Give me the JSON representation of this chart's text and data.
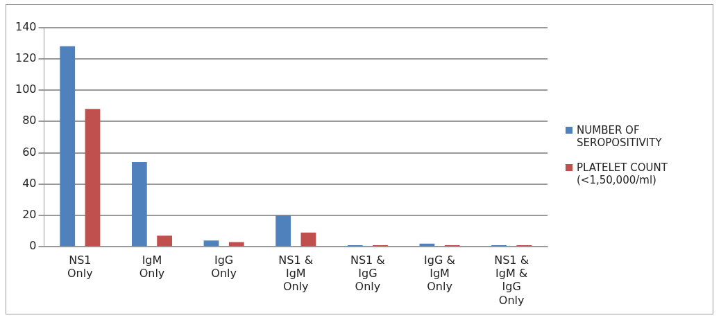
{
  "chart_data": {
    "type": "bar",
    "categories": [
      "NS1 Only",
      "IgM Only",
      "IgG Only",
      "NS1 & IgM Only",
      "NS1 & IgG Only",
      "IgG & IgM Only",
      "NS1 & IgM & IgG Only"
    ],
    "series": [
      {
        "name": "NUMBER OF SEROPOSITIVITY",
        "color": "#4f81bd",
        "values": [
          128,
          54,
          4,
          20,
          1,
          2,
          1
        ]
      },
      {
        "name": "PLATELET COUNT (<1,50,000/ml)",
        "color": "#c0504d",
        "values": [
          88,
          7,
          3,
          9,
          1,
          1,
          1
        ]
      }
    ],
    "ylim": [
      0,
      140
    ],
    "yticks": [
      0,
      20,
      40,
      60,
      80,
      100,
      120,
      140
    ],
    "grid": "y",
    "legend": "right"
  }
}
